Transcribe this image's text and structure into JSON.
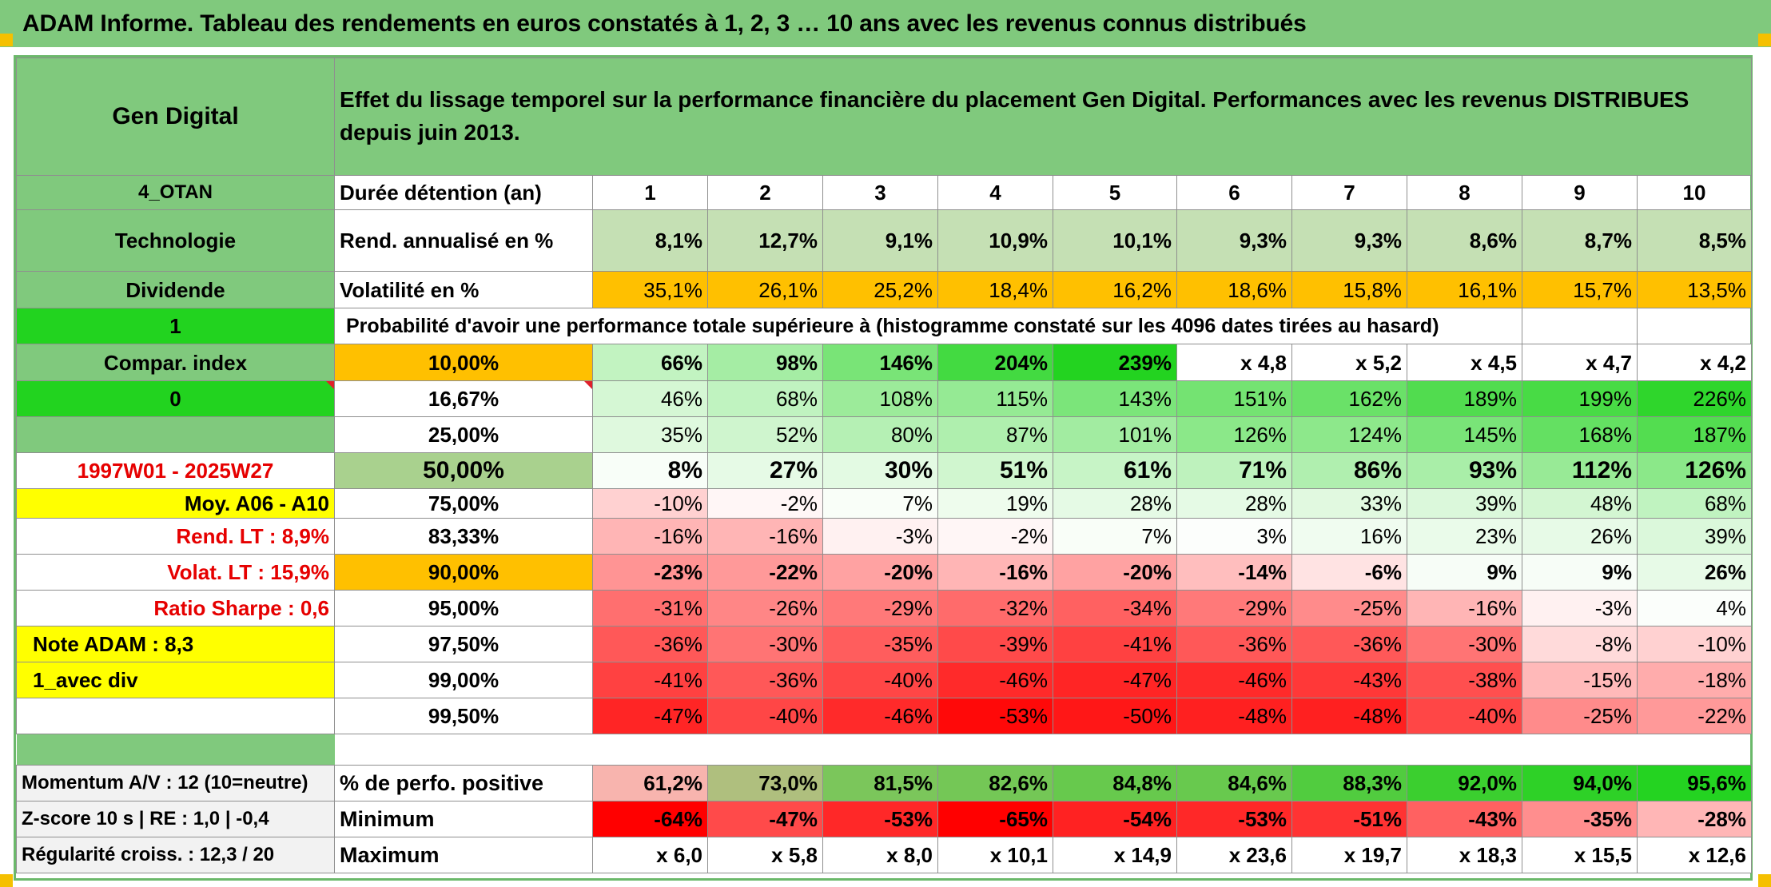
{
  "title": "ADAM Informe. Tableau des rendements en euros constatés à 1, 2, 3 … 10 ans avec les revenus connus distribués",
  "header": {
    "name": "Gen Digital",
    "description": "Effet du lissage temporel sur la performance financière du placement Gen Digital. Performances avec les revenus DISTRIBUES depuis juin 2013."
  },
  "left": {
    "code": "4_OTAN",
    "sector": "Technologie",
    "type": "Dividende",
    "val1": "1",
    "compar": "Compar. index",
    "val0": "0",
    "period": "1997W01 - 2025W27",
    "moy": "Moy. A06 - A10",
    "rend_lt": "Rend. LT :   8,9%",
    "volat_lt": "Volat. LT :   15,9%",
    "sharpe": "Ratio Sharpe :   0,6",
    "note": "Note ADAM : 8,3",
    "avec_div": "1_avec div"
  },
  "years_label": "Durée détention (an)",
  "years": [
    "1",
    "2",
    "3",
    "4",
    "5",
    "6",
    "7",
    "8",
    "9",
    "10"
  ],
  "rend_label": "Rend. annualisé en %",
  "rend": [
    "8,1%",
    "12,7%",
    "9,1%",
    "10,9%",
    "10,1%",
    "9,3%",
    "9,3%",
    "8,6%",
    "8,7%",
    "8,5%"
  ],
  "vol_label": "Volatilité en %",
  "vol": [
    "35,1%",
    "26,1%",
    "25,2%",
    "18,4%",
    "16,2%",
    "18,6%",
    "15,8%",
    "16,1%",
    "15,7%",
    "13,5%"
  ],
  "proba_label": "Probabilité d'avoir une performance totale supérieure à (histogramme constaté sur les 4096 dates tirées au hasard)",
  "percentiles": [
    {
      "p": "10,00%",
      "vals": [
        "66%",
        "98%",
        "146%",
        "204%",
        "239%",
        "x 4,8",
        "x 5,2",
        "x 4,5",
        "x 4,7",
        "x 4,2"
      ]
    },
    {
      "p": "16,67%",
      "vals": [
        "46%",
        "68%",
        "108%",
        "115%",
        "143%",
        "151%",
        "162%",
        "189%",
        "199%",
        "226%"
      ]
    },
    {
      "p": "25,00%",
      "vals": [
        "35%",
        "52%",
        "80%",
        "87%",
        "101%",
        "126%",
        "124%",
        "145%",
        "168%",
        "187%"
      ]
    },
    {
      "p": "50,00%",
      "vals": [
        "8%",
        "27%",
        "30%",
        "51%",
        "61%",
        "71%",
        "86%",
        "93%",
        "112%",
        "126%"
      ]
    },
    {
      "p": "75,00%",
      "vals": [
        "-10%",
        "-2%",
        "7%",
        "19%",
        "28%",
        "28%",
        "33%",
        "39%",
        "48%",
        "68%"
      ]
    },
    {
      "p": "83,33%",
      "vals": [
        "-16%",
        "-16%",
        "-3%",
        "-2%",
        "7%",
        "3%",
        "16%",
        "23%",
        "26%",
        "39%"
      ]
    },
    {
      "p": "90,00%",
      "vals": [
        "-23%",
        "-22%",
        "-20%",
        "-16%",
        "-20%",
        "-14%",
        "-6%",
        "9%",
        "9%",
        "26%"
      ]
    },
    {
      "p": "95,00%",
      "vals": [
        "-31%",
        "-26%",
        "-29%",
        "-32%",
        "-34%",
        "-29%",
        "-25%",
        "-16%",
        "-3%",
        "4%"
      ]
    },
    {
      "p": "97,50%",
      "vals": [
        "-36%",
        "-30%",
        "-35%",
        "-39%",
        "-41%",
        "-36%",
        "-36%",
        "-30%",
        "-8%",
        "-10%"
      ]
    },
    {
      "p": "99,00%",
      "vals": [
        "-41%",
        "-36%",
        "-40%",
        "-46%",
        "-47%",
        "-46%",
        "-43%",
        "-38%",
        "-15%",
        "-18%"
      ]
    },
    {
      "p": "99,50%",
      "vals": [
        "-47%",
        "-40%",
        "-46%",
        "-53%",
        "-50%",
        "-48%",
        "-48%",
        "-40%",
        "-25%",
        "-22%"
      ]
    }
  ],
  "bottom": [
    {
      "left": "Momentum A/V : 12 (10=neutre)",
      "label": "% de perfo. positive",
      "vals": [
        "61,2%",
        "73,0%",
        "81,5%",
        "82,6%",
        "84,8%",
        "84,6%",
        "88,3%",
        "92,0%",
        "94,0%",
        "95,6%"
      ]
    },
    {
      "left": "Z-score 10 s | RE : 1,0 | -0,4",
      "label": "Minimum",
      "vals": [
        "-64%",
        "-47%",
        "-53%",
        "-65%",
        "-54%",
        "-53%",
        "-51%",
        "-43%",
        "-35%",
        "-28%"
      ]
    },
    {
      "left": "Régularité croiss. : 12,3 / 20",
      "label": "Maximum",
      "vals": [
        "x 6,0",
        "x 5,8",
        "x 8,0",
        "x 10,1",
        "x 14,9",
        "x 23,6",
        "x 19,7",
        "x 18,3",
        "x 15,5",
        "x 12,6"
      ]
    }
  ],
  "colors": {
    "header_green": "#80c97d",
    "bright_green": "#22d31f",
    "highlight_yellow": "#ffff00",
    "orange": "#ffc000",
    "red_text": "#e60000",
    "strong_red": "#ff0000"
  }
}
